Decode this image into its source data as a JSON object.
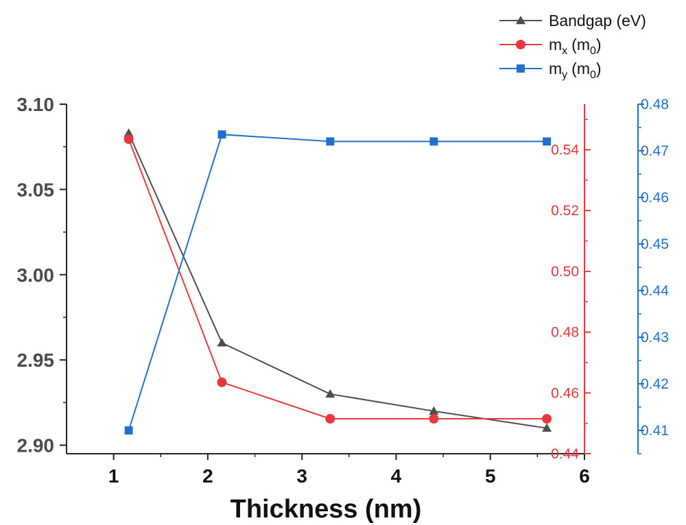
{
  "chart_data": {
    "type": "line",
    "xlabel": "Thickness (nm)",
    "x": [
      1.16,
      2.15,
      3.3,
      4.4,
      5.6
    ],
    "xlim": [
      0.5,
      6
    ],
    "xticks": [
      "1",
      "2",
      "3",
      "4",
      "5",
      "6"
    ],
    "legend_position": "top-right",
    "grid": false,
    "series": [
      {
        "name": "Bandgap (eV)",
        "name_main": "Bandgap (eV)",
        "name_sub": "",
        "name_suffix": "",
        "marker": "triangle",
        "color": "#4d4d4d",
        "axis": "left",
        "values": [
          3.083,
          2.96,
          2.93,
          2.92,
          2.91
        ]
      },
      {
        "name": "mx (m0)",
        "name_main": "m",
        "name_sub": "x",
        "name_suffix": "(m0)",
        "marker": "circle",
        "color": "#e8383d",
        "axis": "right-inner",
        "values": [
          0.5435,
          0.4635,
          0.4515,
          0.4515,
          0.4515
        ]
      },
      {
        "name": "my (m0)",
        "name_main": "m",
        "name_sub": "y",
        "name_suffix": "(m0)",
        "marker": "square",
        "color": "#1f6fd1",
        "axis": "right-outer",
        "values": [
          0.41,
          0.4735,
          0.472,
          0.472,
          0.472
        ]
      }
    ],
    "axes": {
      "left": {
        "min": 2.895,
        "max": 3.1,
        "ticks": [
          "2.90",
          "2.95",
          "3.00",
          "3.05",
          "3.10"
        ],
        "color": "#4a4a4a"
      },
      "right-inner": {
        "min": 0.44,
        "max": 0.555,
        "ticks": [
          "0.44",
          "0.46",
          "0.48",
          "0.50",
          "0.52",
          "0.54"
        ],
        "color": "#e8383d"
      },
      "right-outer": {
        "min": 0.405,
        "max": 0.48,
        "ticks": [
          "0.41",
          "0.42",
          "0.43",
          "0.44",
          "0.45",
          "0.46",
          "0.47",
          "0.48"
        ],
        "color": "#1f6fd1"
      }
    }
  }
}
